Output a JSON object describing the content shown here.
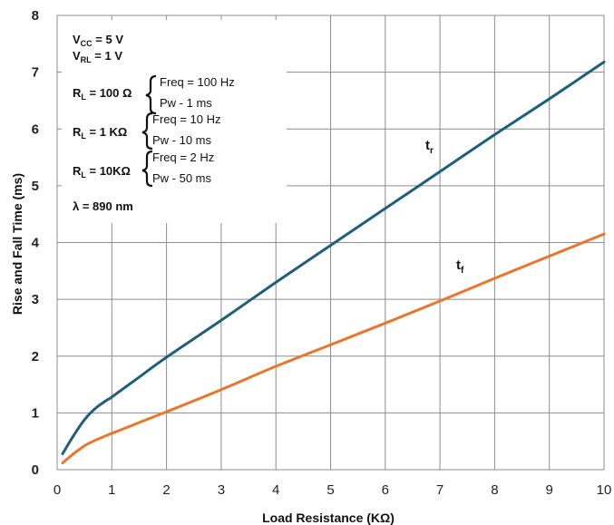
{
  "chart_data": {
    "type": "line",
    "title": "",
    "xlabel": "Load Resistance  (KΩ)",
    "ylabel": "Rise and Fall Time (ms)",
    "xlim": [
      0,
      10
    ],
    "ylim": [
      0,
      8
    ],
    "xticks": [
      "0",
      "1",
      "2",
      "3",
      "4",
      "5",
      "6",
      "7",
      "8",
      "9",
      "10"
    ],
    "yticks": [
      "0",
      "1",
      "2",
      "3",
      "4",
      "5",
      "6",
      "7",
      "8"
    ],
    "grid": true,
    "series": [
      {
        "name": "tr",
        "color": "#1f5f7a",
        "x": [
          0.1,
          0.3,
          0.5,
          0.7,
          0.9,
          1.0,
          1.5,
          2,
          3,
          4,
          5,
          6,
          7,
          8,
          9,
          10
        ],
        "y": [
          0.28,
          0.6,
          0.88,
          1.08,
          1.22,
          1.28,
          1.63,
          1.98,
          2.63,
          3.3,
          3.95,
          4.6,
          5.25,
          5.9,
          6.53,
          7.18
        ]
      },
      {
        "name": "tf",
        "color": "#e8762c",
        "x": [
          0.1,
          0.3,
          0.5,
          0.7,
          0.9,
          1.0,
          1.5,
          2,
          3,
          4,
          5,
          6,
          7,
          8,
          9,
          10
        ],
        "y": [
          0.12,
          0.28,
          0.42,
          0.52,
          0.6,
          0.64,
          0.83,
          1.02,
          1.41,
          1.82,
          2.2,
          2.58,
          2.97,
          3.37,
          3.76,
          4.15
        ]
      }
    ],
    "series_labels": [
      {
        "main": "t",
        "sub": "r"
      },
      {
        "main": "t",
        "sub": "f"
      }
    ],
    "annotations": {
      "vcc": {
        "main": "V",
        "sub": "CC",
        "rest": " = 5 V"
      },
      "vrl": {
        "main": "V",
        "sub": "RL",
        "rest": " = 1 V"
      },
      "rl_groups": [
        {
          "label_main": "R",
          "label_sub": "L",
          "label_rest": " = 100 Ω",
          "freq": "Freq = 100 Hz",
          "pw": "Pw - 1 ms"
        },
        {
          "label_main": "R",
          "label_sub": "L",
          "label_rest": " = 1 KΩ",
          "freq": "Freq = 10 Hz",
          "pw": "Pw - 10 ms"
        },
        {
          "label_main": "R",
          "label_sub": "L",
          "label_rest": " = 10KΩ",
          "freq": "Freq = 2  Hz",
          "pw": "Pw - 50 ms"
        }
      ],
      "lambda": "λ = 890 nm"
    }
  }
}
